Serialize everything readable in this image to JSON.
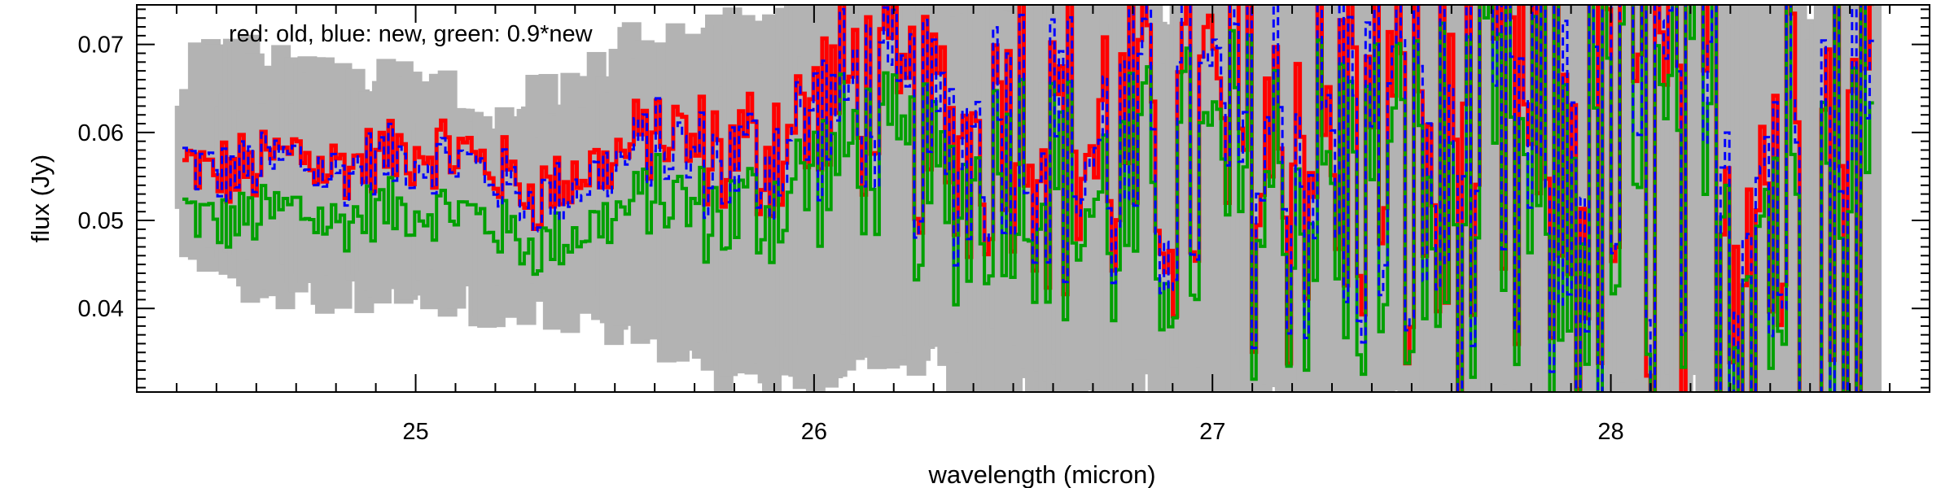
{
  "chart_data": {
    "type": "line",
    "title": "",
    "xlabel": "wavelength (micron)",
    "ylabel": "flux (Jy)",
    "xlim": [
      24.3,
      28.8
    ],
    "ylim": [
      0.0305,
      0.0745
    ],
    "x_ticks": [
      25,
      26,
      27,
      28
    ],
    "x_tick_labels": [
      "25",
      "26",
      "27",
      "28"
    ],
    "y_ticks": [
      0.04,
      0.05,
      0.06,
      0.07
    ],
    "y_tick_labels": [
      "0.04",
      "0.05",
      "0.06",
      "0.07"
    ],
    "grid": false,
    "legend": "none",
    "annotation": "red: old, blue: new, green: 0.9*new",
    "wavelength_range": [
      24.42,
      28.66
    ],
    "sample_step": 0.011,
    "series": [
      {
        "key": "errors",
        "color": "#b3b3b3",
        "style": "solid-thick",
        "x": [
          24.42,
          24.6,
          24.8,
          25.0,
          25.2,
          25.4,
          25.6,
          25.8,
          26.0,
          26.2,
          26.4,
          26.6,
          26.8,
          27.0,
          27.2,
          27.4,
          27.6,
          27.8,
          28.0,
          28.2,
          28.4,
          28.66
        ],
        "lower": [
          0.046,
          0.04,
          0.039,
          0.04,
          0.037,
          0.037,
          0.034,
          0.03,
          0.03,
          0.033,
          0.033,
          0.03,
          0.03,
          0.03,
          0.03,
          0.03,
          0.03,
          0.03,
          0.03,
          0.03,
          0.03,
          0.03
        ],
        "upper": [
          0.07,
          0.072,
          0.07,
          0.068,
          0.066,
          0.068,
          0.0745,
          0.0745,
          0.0745,
          0.0745,
          0.0745,
          0.0745,
          0.0745,
          0.0745,
          0.0745,
          0.0745,
          0.0745,
          0.0745,
          0.0745,
          0.0745,
          0.0745,
          0.0745
        ]
      },
      {
        "key": "old",
        "color": "#ff0000",
        "style": "solid",
        "x": [
          24.42,
          24.5,
          24.6,
          24.7,
          24.8,
          24.9,
          25.0,
          25.1,
          25.2,
          25.3,
          25.4,
          25.5,
          25.6,
          25.7,
          25.8,
          25.9,
          26.0,
          26.1,
          26.2,
          26.3,
          26.4,
          26.5,
          26.6,
          26.7,
          26.8,
          26.9,
          27.0,
          27.2,
          27.4,
          27.6,
          27.8,
          28.0,
          28.2,
          28.4,
          28.66
        ],
        "y": [
          0.056,
          0.055,
          0.056,
          0.058,
          0.056,
          0.057,
          0.058,
          0.058,
          0.056,
          0.053,
          0.055,
          0.057,
          0.06,
          0.058,
          0.057,
          0.059,
          0.062,
          0.066,
          0.063,
          0.06,
          0.059,
          0.065,
          0.06,
          0.058,
          0.057,
          0.058,
          0.06,
          0.059,
          0.058,
          0.056,
          0.057,
          0.058,
          0.058,
          0.057,
          0.057
        ]
      },
      {
        "key": "new",
        "color": "#0000ff",
        "style": "dashed",
        "x": [
          24.42,
          24.5,
          24.6,
          24.7,
          24.8,
          24.9,
          25.0,
          25.1,
          25.2,
          25.3,
          25.4,
          25.5,
          25.6,
          25.7,
          25.8,
          25.9,
          26.0,
          26.1,
          26.2,
          26.3,
          26.4,
          26.5,
          26.6,
          26.7,
          26.8,
          26.9,
          27.0,
          27.2,
          27.4,
          27.6,
          27.8,
          28.0,
          28.2,
          28.4,
          28.66
        ],
        "y": [
          0.057,
          0.055,
          0.056,
          0.057,
          0.055,
          0.057,
          0.057,
          0.057,
          0.055,
          0.052,
          0.054,
          0.056,
          0.059,
          0.057,
          0.056,
          0.058,
          0.061,
          0.065,
          0.062,
          0.059,
          0.058,
          0.064,
          0.059,
          0.057,
          0.056,
          0.057,
          0.059,
          0.058,
          0.057,
          0.055,
          0.056,
          0.057,
          0.057,
          0.056,
          0.056
        ]
      },
      {
        "key": "new_scaled",
        "color": "#00a000",
        "style": "solid",
        "factor": 0.9
      }
    ]
  }
}
